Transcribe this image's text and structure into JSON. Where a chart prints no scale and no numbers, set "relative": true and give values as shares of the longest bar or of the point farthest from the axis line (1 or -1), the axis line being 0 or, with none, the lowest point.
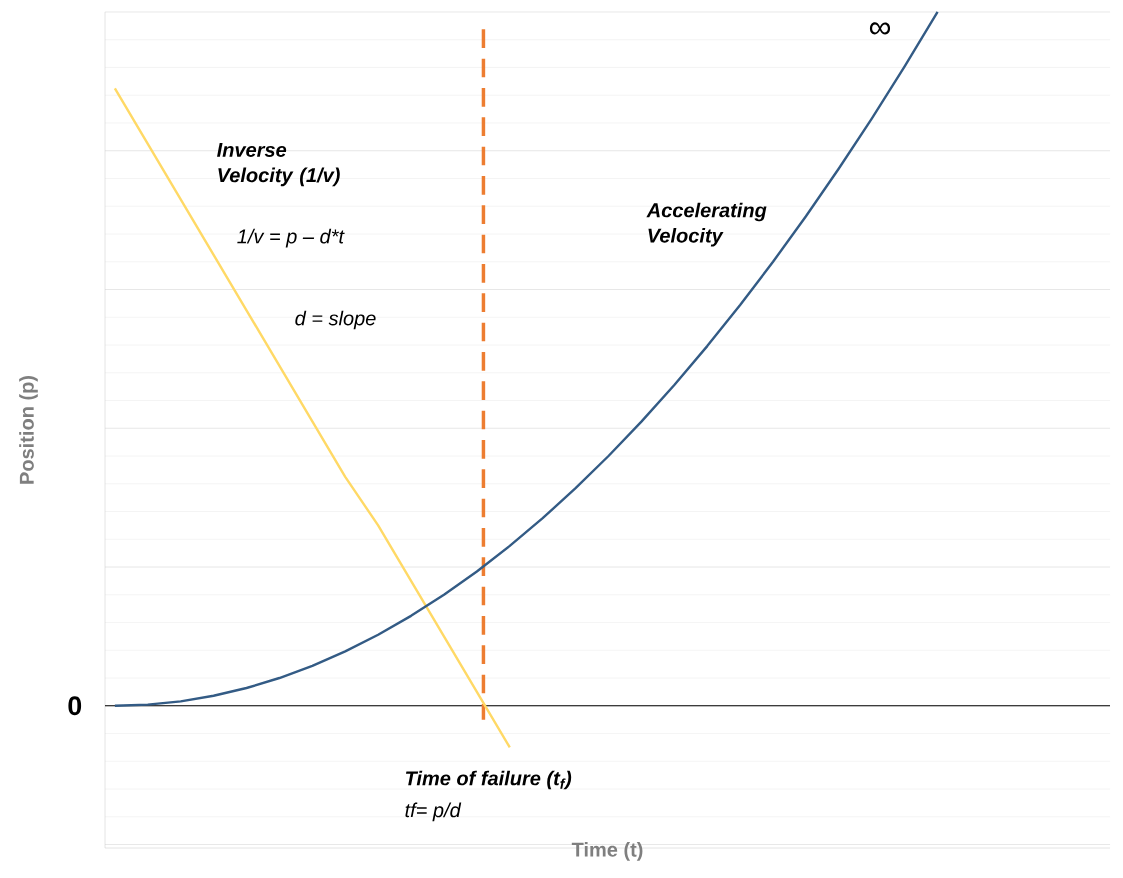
{
  "chart_data": {
    "type": "line",
    "relative": true,
    "marker": "none",
    "grid": "y",
    "xlabel": "Time (t)",
    "ylabel": "Position (p)",
    "categories": [
      null,
      null,
      null,
      null,
      null,
      null,
      null,
      null,
      null,
      null,
      null,
      null,
      null,
      null,
      null,
      null,
      null,
      null,
      null,
      null,
      null,
      null,
      null,
      null,
      null,
      null,
      null,
      null,
      null,
      null,
      null
    ],
    "series": [
      {
        "name": "Inverse Velocity (1/v)",
        "color": "#ffd966",
        "values": [
          0.89,
          0.81,
          0.73,
          0.65,
          0.57,
          0.49,
          0.41,
          0.33,
          0.26,
          0.18,
          0.1,
          0.02,
          -0.06,
          null,
          null,
          null,
          null,
          null,
          null,
          null,
          null,
          null,
          null,
          null,
          null,
          null,
          null,
          null,
          null,
          null,
          null
        ]
      },
      {
        "name": "Accelerating Velocity",
        "color": "#335b85",
        "values": [
          0,
          0.0016,
          0.0064,
          0.0144,
          0.0256,
          0.04,
          0.0576,
          0.0784,
          0.1024,
          0.1296,
          0.16,
          0.1936,
          0.2304,
          0.2704,
          0.3136,
          0.36,
          0.4096,
          0.4624,
          0.5184,
          0.5776,
          0.64,
          0.7056,
          0.7744,
          0.8464,
          0.9216,
          1.0,
          null,
          null,
          null,
          null,
          null
        ]
      }
    ],
    "annotations": [
      "1/v = p – d*t",
      "d = slope",
      "∞",
      "tf= p/d",
      "0",
      "**Time of failure (t$_{f}$)**"
    ]
  }
}
